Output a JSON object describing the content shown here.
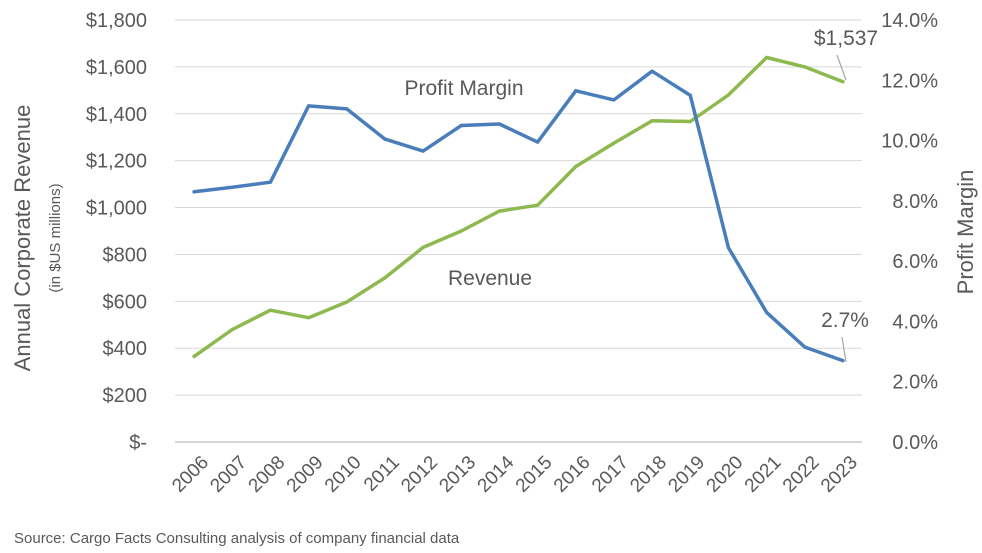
{
  "chart_data": {
    "type": "line",
    "categories": [
      "2006",
      "2007",
      "2008",
      "2009",
      "2010",
      "2011",
      "2012",
      "2013",
      "2014",
      "2015",
      "2016",
      "2017",
      "2018",
      "2019",
      "2020",
      "2021",
      "2022",
      "2023"
    ],
    "series": [
      {
        "name": "Revenue",
        "axis": "left",
        "color": "#8DB94F",
        "values": [
          365,
          480,
          562,
          530,
          597,
          700,
          830,
          900,
          985,
          1010,
          1175,
          1275,
          1370,
          1367,
          1480,
          1640,
          1600,
          1537
        ]
      },
      {
        "name": "Profit Margin",
        "axis": "right",
        "color": "#4A7EBB",
        "values": [
          8.3,
          8.45,
          8.62,
          11.15,
          11.05,
          10.05,
          9.65,
          10.5,
          10.55,
          9.95,
          11.65,
          11.35,
          12.3,
          11.5,
          6.45,
          4.3,
          3.15,
          2.7
        ]
      }
    ],
    "left_axis": {
      "title": "Annual Corporate Revenue",
      "subtitle": "(in $US millions)",
      "min": 0,
      "max": 1800,
      "tick_labels": [
        "$-",
        "$200",
        "$400",
        "$600",
        "$800",
        "$1,000",
        "$1,200",
        "$1,400",
        "$1,600",
        "$1,800"
      ]
    },
    "right_axis": {
      "title": "Profit Margin",
      "min": 0,
      "max": 14,
      "tick_labels": [
        "0.0%",
        "2.0%",
        "4.0%",
        "6.0%",
        "8.0%",
        "10.0%",
        "12.0%",
        "14.0%"
      ]
    },
    "annotations": {
      "revenue_last": "$1,537",
      "margin_last": "2.7%"
    },
    "grid": true,
    "legend": "inline labels",
    "source": "Source: Cargo Facts Consulting analysis of company financial data",
    "colors": {
      "grid": "#D9D9D9",
      "text": "#595959",
      "callout_line": "#A6A6A6"
    }
  }
}
